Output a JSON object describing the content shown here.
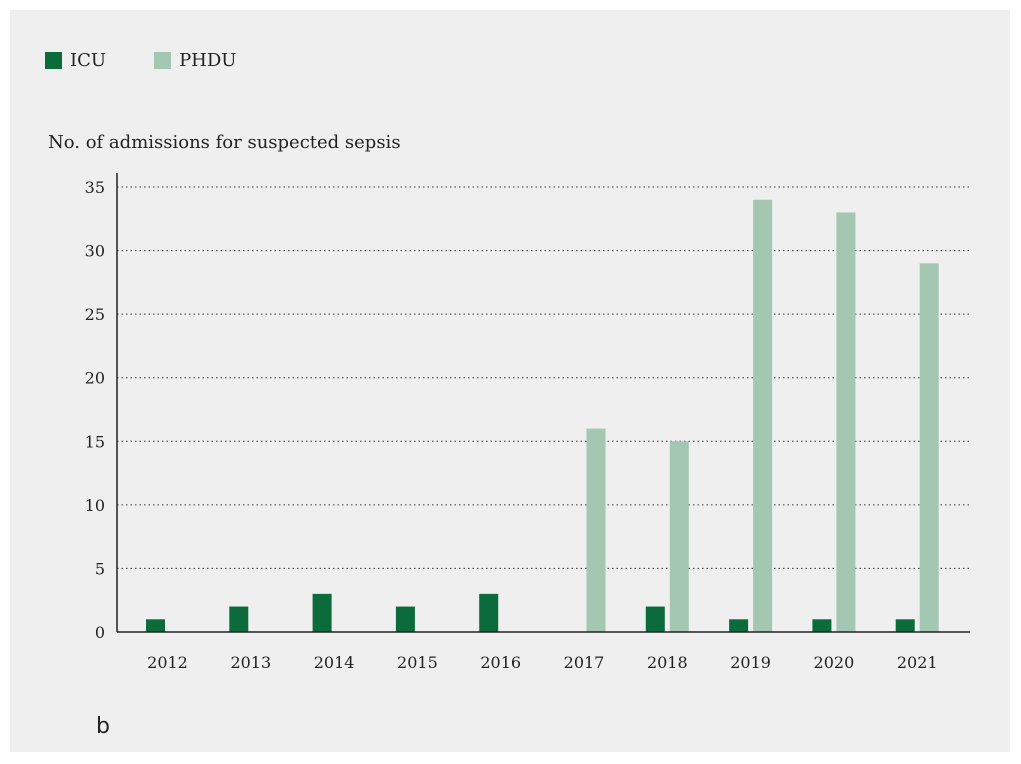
{
  "panel_label": "b",
  "colors": {
    "ICU": "#0b6b3a",
    "PHDU": "#a3c7b2",
    "background": "#efefef"
  },
  "chart_data": {
    "type": "bar",
    "title": "",
    "ylabel": "No. of admissions for suspected sepsis",
    "xlabel": "",
    "categories": [
      "2012",
      "2013",
      "2014",
      "2015",
      "2016",
      "2017",
      "2018",
      "2019",
      "2020",
      "2021"
    ],
    "series": [
      {
        "name": "ICU",
        "values": [
          1,
          2,
          3,
          2,
          3,
          0,
          2,
          1,
          1,
          1
        ]
      },
      {
        "name": "PHDU",
        "values": [
          0,
          0,
          0,
          0,
          0,
          16,
          15,
          34,
          33,
          29
        ]
      }
    ],
    "ylim": [
      0,
      35
    ],
    "yticks": [
      "0",
      "5",
      "10",
      "15",
      "20",
      "25",
      "30",
      "35"
    ],
    "grid": "horizontal dotted",
    "legend_position": "top-left"
  }
}
